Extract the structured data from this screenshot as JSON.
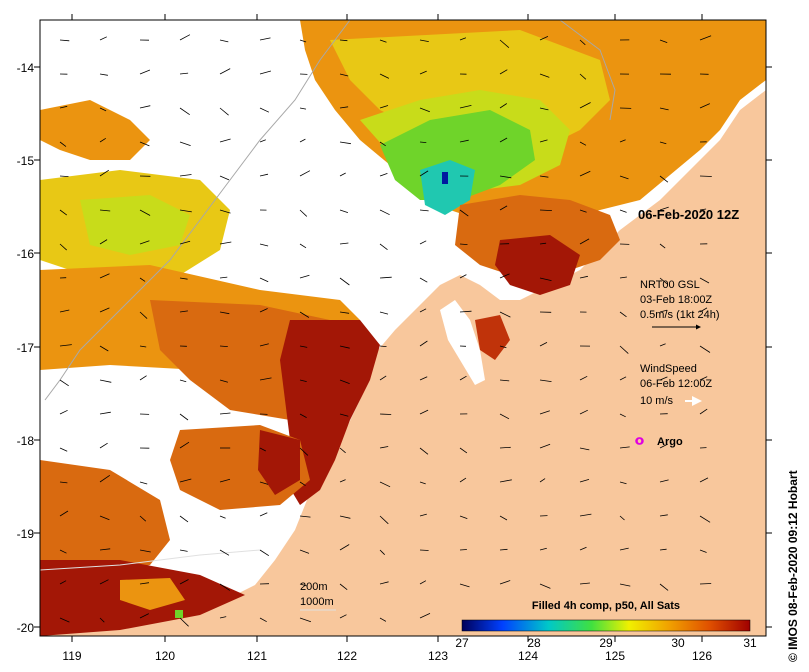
{
  "map": {
    "lon_range": [
      118.6,
      126.7
    ],
    "lat_range": [
      -20.1,
      -13.5
    ],
    "lon_ticks": [
      "119",
      "120",
      "121",
      "122",
      "123",
      "124",
      "125",
      "126"
    ],
    "lat_ticks": [
      "-14",
      "-15",
      "-16",
      "-17",
      "-18",
      "-19",
      "-20"
    ],
    "colors": {
      "land": "#f8c79c",
      "no_data": "#ffffff",
      "hot": "#a31706",
      "warm": "#d96a10",
      "orange": "#eb9410",
      "yellow": "#e8c815",
      "lime": "#c8dc1a",
      "green": "#6fd42a",
      "cyan": "#20c8b0",
      "deep_blue": "#001aa0",
      "isobath": "#a8a8a8"
    }
  },
  "annotations": {
    "date_label": "06-Feb-2020 12Z",
    "current_title": "NRT00 GSL",
    "current_time": "03-Feb 18:00Z",
    "current_scale": "0.5m/s (1kt 24h)",
    "wind_title": "WindSpeed",
    "wind_time": "06-Feb 12:00Z",
    "wind_scale": "10 m/s",
    "argo_label": "Argo",
    "isobath_200": "200m",
    "isobath_1000": "1000m"
  },
  "colorbar": {
    "title": "Filled 4h comp, p50, All Sats",
    "ticks": [
      "27",
      "28",
      "29",
      "30",
      "31"
    ],
    "stops": [
      "#00005a",
      "#0040ff",
      "#00c8c8",
      "#40e040",
      "#f0f000",
      "#f0a000",
      "#e05000",
      "#a00000"
    ]
  },
  "credit": "© IMOS 08-Feb-2020 09:12 Hobart"
}
